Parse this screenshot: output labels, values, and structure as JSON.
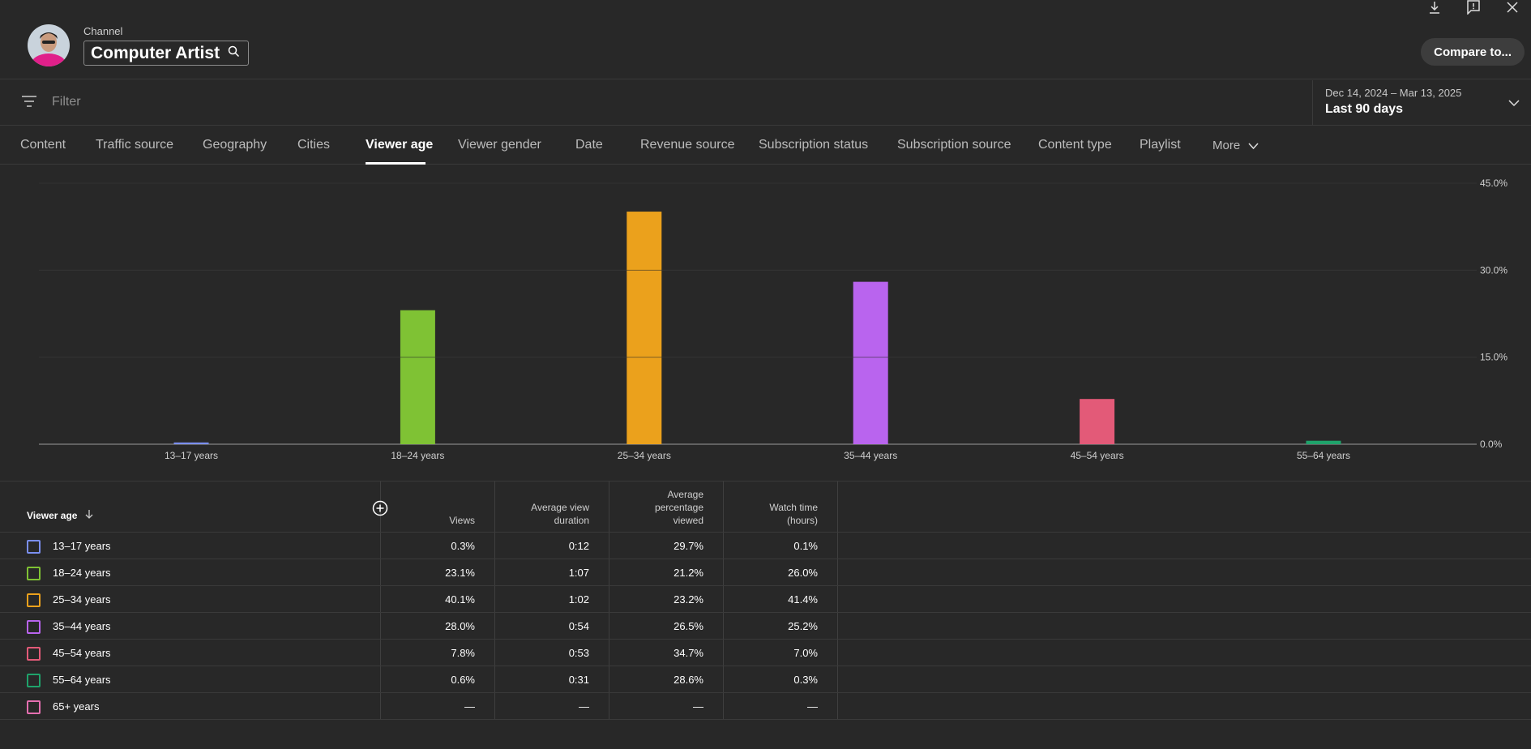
{
  "header": {
    "channel_label": "Channel",
    "channel_name": "Computer Artist",
    "compare_label": "Compare to..."
  },
  "filter": {
    "placeholder": "Filter"
  },
  "date_picker": {
    "range": "Dec 14, 2024 – Mar 13, 2025",
    "label": "Last 90 days"
  },
  "tabs": [
    {
      "label": "Content"
    },
    {
      "label": "Traffic source"
    },
    {
      "label": "Geography"
    },
    {
      "label": "Cities"
    },
    {
      "label": "Viewer age",
      "active": true
    },
    {
      "label": "Viewer gender"
    },
    {
      "label": "Date"
    },
    {
      "label": "Revenue source"
    },
    {
      "label": "Subscription status"
    },
    {
      "label": "Subscription source"
    },
    {
      "label": "Content type"
    },
    {
      "label": "Playlist"
    },
    {
      "label": "More"
    }
  ],
  "chart_data": {
    "type": "bar",
    "categories": [
      "13–17 years",
      "18–24 years",
      "25–34 years",
      "35–44 years",
      "45–54 years",
      "55–64 years"
    ],
    "values": [
      0.3,
      23.1,
      40.1,
      28.0,
      7.8,
      0.6
    ],
    "colors": [
      "#7b8ff0",
      "#7fc234",
      "#eba11c",
      "#b964ee",
      "#e35a78",
      "#1fa36b"
    ],
    "ylim": [
      0,
      45
    ],
    "yticks": [
      "0.0%",
      "15.0%",
      "30.0%",
      "45.0%"
    ],
    "ytick_values": [
      0,
      15,
      30,
      45
    ],
    "grid": true
  },
  "table": {
    "columns": {
      "first": "Viewer age",
      "views": "Views",
      "avd_1": "Average view",
      "avd_2": "duration",
      "apv_1": "Average",
      "apv_2": "percentage",
      "apv_3": "viewed",
      "wt_1": "Watch time",
      "wt_2": "(hours)"
    },
    "rows": [
      {
        "label": "13–17 years",
        "color": "#7b8ff0",
        "views": "0.3%",
        "avd": "0:12",
        "apv": "29.7%",
        "wt": "0.1%"
      },
      {
        "label": "18–24 years",
        "color": "#7fc234",
        "views": "23.1%",
        "avd": "1:07",
        "apv": "21.2%",
        "wt": "26.0%"
      },
      {
        "label": "25–34 years",
        "color": "#eba11c",
        "views": "40.1%",
        "avd": "1:02",
        "apv": "23.2%",
        "wt": "41.4%"
      },
      {
        "label": "35–44 years",
        "color": "#b964ee",
        "views": "28.0%",
        "avd": "0:54",
        "apv": "26.5%",
        "wt": "25.2%"
      },
      {
        "label": "45–54 years",
        "color": "#e35a78",
        "views": "7.8%",
        "avd": "0:53",
        "apv": "34.7%",
        "wt": "7.0%"
      },
      {
        "label": "55–64 years",
        "color": "#1fa36b",
        "views": "0.6%",
        "avd": "0:31",
        "apv": "28.6%",
        "wt": "0.3%"
      },
      {
        "label": "65+ years",
        "color": "#e46fb0",
        "views": "—",
        "avd": "—",
        "apv": "—",
        "wt": "—"
      }
    ]
  }
}
